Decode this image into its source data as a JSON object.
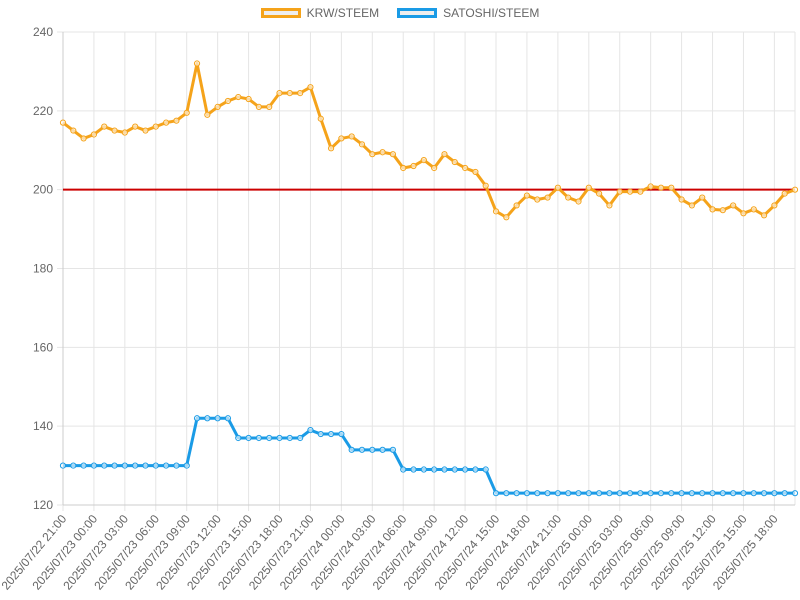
{
  "legend": {
    "items": [
      {
        "label": "KRW/STEEM",
        "border": "#f5a31a",
        "fill": "#eeeeee"
      },
      {
        "label": "SATOSHI/STEEM",
        "border": "#1a9be6",
        "fill": "#eeeeee"
      }
    ]
  },
  "chart_data": {
    "type": "line",
    "grid": true,
    "legend_position": "top",
    "ylim": [
      120,
      240
    ],
    "yticks": [
      120,
      140,
      160,
      180,
      200,
      220,
      240
    ],
    "x_ticks": [
      "2025/07/22 21:00",
      "2025/07/23 00:00",
      "2025/07/23 03:00",
      "2025/07/23 06:00",
      "2025/07/23 09:00",
      "2025/07/23 12:00",
      "2025/07/23 15:00",
      "2025/07/23 18:00",
      "2025/07/23 21:00",
      "2025/07/24 00:00",
      "2025/07/24 03:00",
      "2025/07/24 06:00",
      "2025/07/24 09:00",
      "2025/07/24 12:00",
      "2025/07/24 15:00",
      "2025/07/24 18:00",
      "2025/07/24 21:00",
      "2025/07/25 00:00",
      "2025/07/25 03:00",
      "2025/07/25 06:00",
      "2025/07/25 09:00",
      "2025/07/25 12:00",
      "2025/07/25 15:00",
      "2025/07/25 18:00"
    ],
    "reference_line": {
      "y": 200,
      "color": "#cc0000"
    },
    "series": [
      {
        "name": "KRW/STEEM",
        "color": "#f5a31a",
        "values": [
          217,
          215,
          213,
          214,
          216,
          215,
          214.5,
          216,
          215,
          216,
          217,
          217.5,
          219.5,
          232,
          219,
          221,
          222.5,
          223.5,
          223,
          221,
          221,
          224.5,
          224.5,
          224.5,
          226,
          218,
          210.5,
          213,
          213.5,
          211.5,
          209,
          209.5,
          209,
          205.5,
          206,
          207.5,
          205.5,
          209,
          207,
          205.5,
          204.5,
          201,
          194.5,
          193,
          196,
          198.5,
          197.5,
          198,
          200.5,
          198,
          197,
          200.5,
          199,
          196,
          199.5,
          199.5,
          199.5,
          200.8,
          200.5,
          200.5,
          197.5,
          196,
          198,
          195,
          194.8,
          196,
          194,
          195,
          193.5,
          196,
          199,
          200
        ]
      },
      {
        "name": "SATOSHI/STEEM",
        "color": "#1a9be6",
        "values": [
          130,
          130,
          130,
          130,
          130,
          130,
          130,
          130,
          130,
          130,
          130,
          130,
          130,
          142,
          142,
          142,
          142,
          137,
          137,
          137,
          137,
          137,
          137,
          137,
          139,
          138,
          138,
          138,
          134,
          134,
          134,
          134,
          134,
          129,
          129,
          129,
          129,
          129,
          129,
          129,
          129,
          129,
          123,
          123,
          123,
          123,
          123,
          123,
          123,
          123,
          123,
          123,
          123,
          123,
          123,
          123,
          123,
          123,
          123,
          123,
          123,
          123,
          123,
          123,
          123,
          123,
          123,
          123,
          123,
          123,
          123,
          123
        ]
      }
    ]
  }
}
